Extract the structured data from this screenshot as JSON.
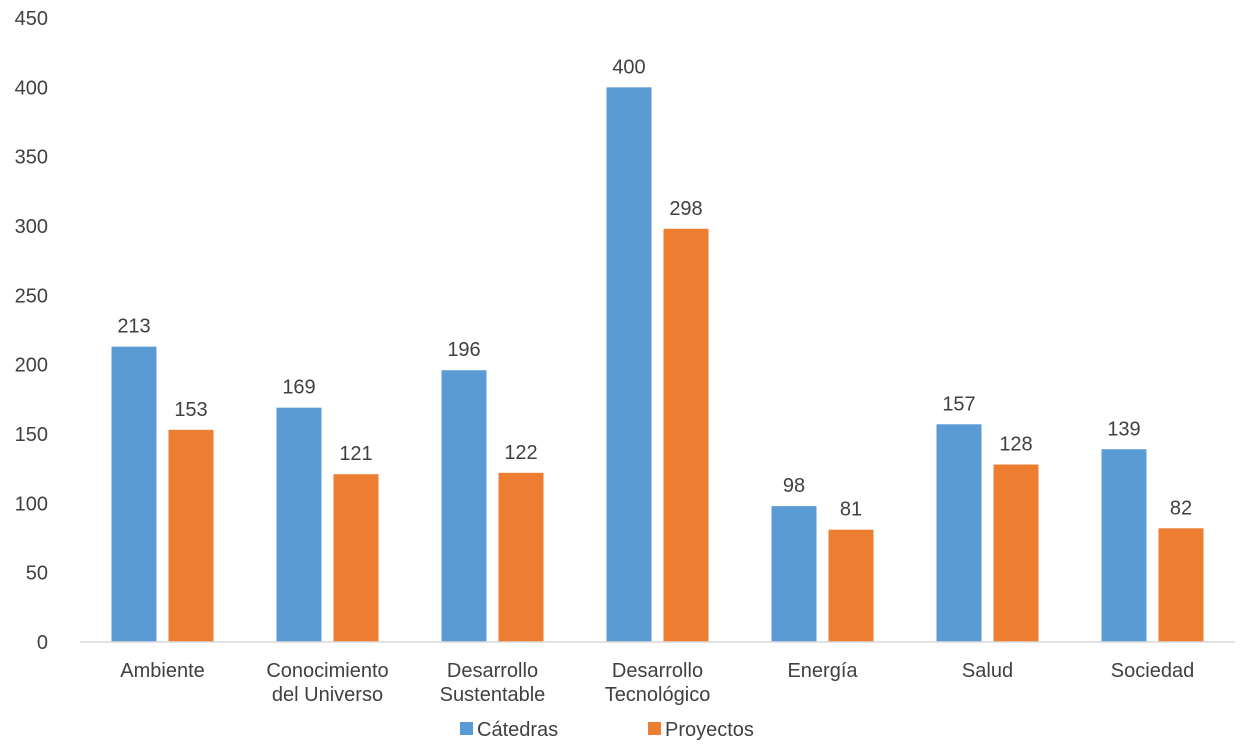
{
  "chart_data": {
    "type": "bar",
    "categories": [
      [
        "Ambiente"
      ],
      [
        "Conocimiento",
        "del Universo"
      ],
      [
        "Desarrollo",
        "Sustentable"
      ],
      [
        "Desarrollo",
        "Tecnológico"
      ],
      [
        "Energía"
      ],
      [
        "Salud"
      ],
      [
        "Sociedad"
      ]
    ],
    "series": [
      {
        "name": "Cátedras",
        "color": "#5b9bd5",
        "values": [
          213,
          169,
          196,
          400,
          98,
          157,
          139
        ]
      },
      {
        "name": "Proyectos",
        "color": "#ed7d31",
        "values": [
          153,
          121,
          122,
          298,
          81,
          128,
          82
        ]
      }
    ],
    "ylim": [
      0,
      450
    ],
    "yticks": [
      0,
      50,
      100,
      150,
      200,
      250,
      300,
      350,
      400,
      450
    ],
    "grid": false,
    "legend_position": "bottom",
    "data_labels": true
  }
}
